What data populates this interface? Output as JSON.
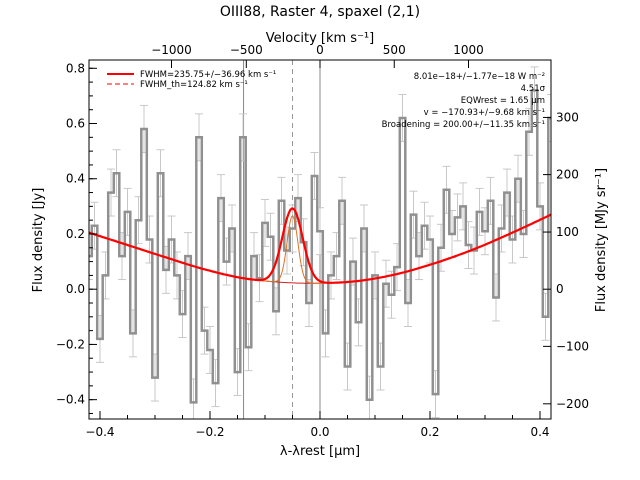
{
  "chart_data": {
    "type": "line",
    "title": "OIII88, Raster 4, spaxel (2,1)",
    "xlabel": "λ-λrest [μm]",
    "ylabel": "Flux density [Jy]",
    "top_xlabel": "Velocity [km s⁻¹]",
    "right_ylabel": "Flux density [MJy sr⁻¹]",
    "xlim": [
      -0.42,
      0.42
    ],
    "ylim": [
      -0.47,
      0.83
    ],
    "x_ticks": [
      -0.4,
      -0.2,
      0.0,
      0.2,
      0.4
    ],
    "x_tick_labels": [
      "−0.4",
      "−0.2",
      "0.0",
      "0.2",
      "0.4"
    ],
    "y_ticks": [
      -0.4,
      -0.2,
      0.0,
      0.2,
      0.4,
      0.6,
      0.8
    ],
    "y_tick_labels": [
      "−0.4",
      "−0.2",
      "0.0",
      "0.2",
      "0.4",
      "0.6",
      "0.8"
    ],
    "top_ticks": [
      {
        "label": "−1000",
        "x": -0.27
      },
      {
        "label": "−500",
        "x": -0.134
      },
      {
        "label": "0",
        "x": 0.0
      },
      {
        "label": "500",
        "x": 0.135
      },
      {
        "label": "1000",
        "x": 0.27
      }
    ],
    "right_ticks": [
      {
        "label": "300",
        "y": 0.622
      },
      {
        "label": "200",
        "y": 0.415
      },
      {
        "label": "100",
        "y": 0.207
      },
      {
        "label": "0",
        "y": 0.0
      },
      {
        "label": "−100",
        "y": -0.207
      },
      {
        "label": "−200",
        "y": -0.415
      }
    ],
    "vertical_lines": [
      -0.139,
      0.0
    ],
    "dashed_line_x": -0.05,
    "legend": {
      "placement": "top-left",
      "entries": [
        {
          "label": "FWHM=235.75+/−36.96 km s⁻¹",
          "style": "solid",
          "color": "#ff0000"
        },
        {
          "label": "FWHM_th=124.82 km s⁻¹",
          "style": "dashed",
          "color": "#ff0000"
        }
      ]
    },
    "annotations": [
      "8.01e−18+/−1.77e−18 W m⁻²",
      "4.51σ",
      "EQWrest = 1.65 μm",
      "v = −170.93+/−9.68 km s⁻¹",
      "Broadening = 200.00+/−11.35 km s⁻¹"
    ],
    "data_series": {
      "name": "",
      "color": "#909090",
      "x": [
        -0.42,
        -0.41,
        -0.4,
        -0.39,
        -0.38,
        -0.37,
        -0.36,
        -0.35,
        -0.34,
        -0.33,
        -0.32,
        -0.31,
        -0.3,
        -0.29,
        -0.28,
        -0.27,
        -0.26,
        -0.25,
        -0.24,
        -0.23,
        -0.22,
        -0.21,
        -0.2,
        -0.19,
        -0.18,
        -0.17,
        -0.16,
        -0.15,
        -0.14,
        -0.13,
        -0.12,
        -0.11,
        -0.1,
        -0.09,
        -0.08,
        -0.07,
        -0.06,
        -0.05,
        -0.04,
        -0.03,
        -0.02,
        -0.01,
        0.0,
        0.01,
        0.02,
        0.03,
        0.04,
        0.05,
        0.06,
        0.07,
        0.08,
        0.09,
        0.1,
        0.11,
        0.12,
        0.13,
        0.14,
        0.15,
        0.16,
        0.17,
        0.18,
        0.19,
        0.2,
        0.21,
        0.22,
        0.23,
        0.24,
        0.25,
        0.26,
        0.27,
        0.28,
        0.29,
        0.3,
        0.31,
        0.32,
        0.33,
        0.34,
        0.35,
        0.36,
        0.37,
        0.38,
        0.39,
        0.4,
        0.41,
        0.42
      ],
      "y": [
        0.12,
        0.23,
        -0.18,
        0.05,
        0.35,
        0.42,
        0.12,
        0.28,
        -0.16,
        0.25,
        0.58,
        0.18,
        -0.32,
        0.42,
        0.07,
        0.18,
        0.05,
        -0.09,
        0.12,
        -0.41,
        0.55,
        -0.15,
        -0.22,
        -0.34,
        0.33,
        0.1,
        0.22,
        -0.3,
        0.55,
        -0.21,
        0.12,
        0.04,
        0.24,
        0.19,
        -0.08,
        0.32,
        0.14,
        0.22,
        0.33,
        0.17,
        -0.05,
        0.41,
        0.21,
        -0.16,
        0.05,
        0.12,
        0.32,
        -0.28,
        0.1,
        -0.12,
        0.22,
        -0.4,
        0.05,
        -0.28,
        0.02,
        -0.02,
        0.08,
        0.62,
        -0.05,
        0.27,
        0.12,
        0.23,
        0.18,
        -0.38,
        0.15,
        0.36,
        0.2,
        0.26,
        0.3,
        0.16,
        0.14,
        0.28,
        0.21,
        0.32,
        -0.03,
        0.22,
        0.35,
        0.18,
        0.4,
        0.2,
        0.57,
        0.72,
        0.3,
        -0.1,
        0.62
      ],
      "error": 0.085
    },
    "fit_series": {
      "name": "",
      "color": "#ff0000",
      "baseline_x": [
        -0.42,
        -0.35,
        -0.28,
        -0.21,
        -0.14,
        -0.07,
        0.0,
        0.07,
        0.14,
        0.21,
        0.28,
        0.35,
        0.42
      ],
      "baseline_y": [
        0.205,
        0.16,
        0.115,
        0.072,
        0.04,
        0.025,
        0.022,
        0.03,
        0.055,
        0.095,
        0.145,
        0.205,
        0.27
      ],
      "gaussian_center": -0.05,
      "gaussian_peak": 0.27,
      "gaussian_sigma": 0.0185,
      "thermal_sigma": 0.0098
    }
  }
}
